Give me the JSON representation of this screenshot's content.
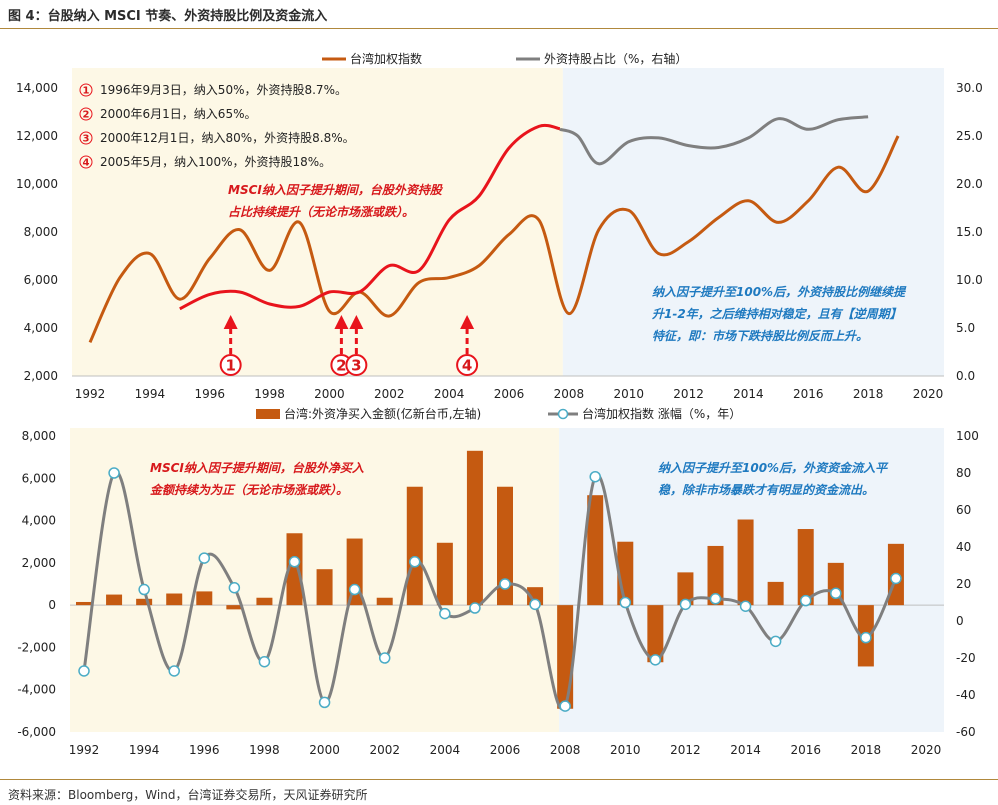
{
  "header": {
    "title": "图 4：台股纳入 MSCI 节奏、外资持股比例及资金流入",
    "source": "资料来源：Bloomberg，Wind，台湾证券交易所，天风证券研究所"
  },
  "colors": {
    "index": "#c55a11",
    "foreign_holding": "#7f7f7f",
    "highlight": "#e8141c",
    "bar": "#c55a11",
    "yoy": "#7f7f7f",
    "shade_left": "#fdf8e6",
    "shade_right": "#eef4fa",
    "rule": "#b0883c"
  },
  "chart_data": [
    {
      "type": "line",
      "legend_position": "top",
      "shaded_regions": [
        [
          1992,
          2007.8
        ],
        [
          2007.8,
          2020.5
        ]
      ],
      "xlim": [
        1992,
        2020
      ],
      "x_ticks": [
        "1992",
        "1994",
        "1996",
        "1998",
        "2000",
        "2002",
        "2004",
        "2006",
        "2008",
        "2010",
        "2012",
        "2014",
        "2016",
        "2018",
        "2020"
      ],
      "y_left": {
        "lim": [
          2000,
          14000
        ],
        "ticks": [
          "2,000",
          "4,000",
          "6,000",
          "8,000",
          "10,000",
          "12,000",
          "14,000"
        ]
      },
      "y_right": {
        "lim": [
          0,
          30
        ],
        "ticks": [
          "0.0",
          "5.0",
          "10.0",
          "15.0",
          "20.0",
          "25.0",
          "30.0"
        ]
      },
      "series": [
        {
          "name": "台湾加权指数",
          "axis": "left",
          "x": [
            1992,
            1993,
            1994,
            1995,
            1996,
            1997,
            1998,
            1999,
            2000,
            2001,
            2002,
            2003,
            2004,
            2005,
            2006,
            2007,
            2008,
            2009,
            2010,
            2011,
            2012,
            2013,
            2014,
            2015,
            2016,
            2017,
            2018,
            2019
          ],
          "values": [
            3400,
            6100,
            7100,
            5200,
            6900,
            8100,
            6400,
            8400,
            4700,
            5500,
            4500,
            5900,
            6100,
            6600,
            7900,
            8500,
            4600,
            8100,
            8900,
            7100,
            7600,
            8600,
            9300,
            8400,
            9300,
            10700,
            9700,
            12000
          ]
        },
        {
          "name": "外资持股占比（%，右轴）",
          "axis": "right",
          "x": [
            2007.7,
            2008.3,
            2009,
            2010,
            2011,
            2012,
            2013,
            2014,
            2015,
            2016,
            2017,
            2018
          ],
          "values": [
            25.7,
            25.0,
            22.1,
            24.4,
            24.8,
            24.0,
            23.8,
            24.8,
            26.8,
            25.7,
            26.7,
            27.0
          ]
        }
      ],
      "highlight": {
        "x": [
          1995,
          1996,
          1997,
          1998,
          1999,
          2000,
          2001,
          2002,
          2003,
          2004,
          2005,
          2006,
          2007,
          2007.7
        ],
        "values": [
          4800,
          5400,
          5500,
          5000,
          4900,
          5500,
          5500,
          6600,
          6400,
          8500,
          9500,
          11500,
          12400,
          12300
        ]
      },
      "annotations": {
        "events": [
          {
            "marker": "①",
            "text": "1996年9月3日，纳入50%，外资持股8.7%。",
            "x": 1996.7
          },
          {
            "marker": "②",
            "text": "2000年6月1日，纳入65%。",
            "x": 2000.4
          },
          {
            "marker": "③",
            "text": "2000年12月1日，纳入80%，外资持股8.8%。",
            "x": 2000.9
          },
          {
            "marker": "④",
            "text": "2005年5月，纳入100%，外资持股18%。",
            "x": 2004.6
          }
        ],
        "left_note": [
          "MSCI纳入因子提升期间，台股外资持股",
          "占比持续提升（无论市场涨或跌）。"
        ],
        "right_note": [
          "纳入因子提升至100%后，外资持股比例继续提",
          "升1-2年，之后维持相对稳定，且有【逆周期】",
          "特征，即：市场下跌持股比例反而上升。"
        ]
      }
    },
    {
      "type": "bar",
      "legend_position": "top",
      "shaded_regions": [
        [
          1992,
          2007.8
        ],
        [
          2007.8,
          2020.5
        ]
      ],
      "xlim": [
        1992,
        2020
      ],
      "x_ticks": [
        "1992",
        "1994",
        "1996",
        "1998",
        "2000",
        "2002",
        "2004",
        "2006",
        "2008",
        "2010",
        "2012",
        "2014",
        "2016",
        "2018",
        "2020"
      ],
      "y_left": {
        "lim": [
          -6000,
          8000
        ],
        "ticks": [
          "-6,000",
          "-4,000",
          "-2,000",
          "0",
          "2,000",
          "4,000",
          "6,000",
          "8,000"
        ]
      },
      "y_right": {
        "lim": [
          -60,
          100
        ],
        "ticks": [
          "-60",
          "-40",
          "-20",
          "0",
          "20",
          "40",
          "60",
          "80",
          "100"
        ]
      },
      "categories": [
        "1992",
        "1993",
        "1994",
        "1995",
        "1996",
        "1997",
        "1998",
        "1999",
        "2000",
        "2001",
        "2002",
        "2003",
        "2004",
        "2005",
        "2006",
        "2007",
        "2008",
        "2009",
        "2010",
        "2011",
        "2012",
        "2013",
        "2014",
        "2015",
        "2016",
        "2017",
        "2018",
        "2019"
      ],
      "series": [
        {
          "name": "台湾:外资净买入金额(亿新台币,左轴)",
          "axis": "left",
          "values": [
            150,
            500,
            300,
            550,
            650,
            -200,
            350,
            3400,
            1700,
            3150,
            350,
            5600,
            2950,
            7300,
            5600,
            850,
            -4900,
            5200,
            3000,
            -2700,
            1550,
            2800,
            4050,
            1100,
            3600,
            2000,
            -2900,
            2900
          ]
        },
        {
          "name": "台湾加权指数 涨幅（%，年）",
          "axis": "right",
          "values": [
            -27,
            80,
            17,
            -27,
            34,
            18,
            -22,
            32,
            -44,
            17,
            -20,
            32,
            4,
            7,
            20,
            9,
            -46,
            78,
            10,
            -21,
            9,
            12,
            8,
            -11,
            11,
            15,
            -9,
            23
          ]
        }
      ],
      "annotations": {
        "left_note": [
          "MSCI纳入因子提升期间，台股外净买入",
          "金额持续为为正（无论市场涨或跌）。"
        ],
        "right_note": [
          "纳入因子提升至100%后，外资资金流入平",
          "稳，除非市场暴跌才有明显的资金流出。"
        ]
      }
    }
  ]
}
